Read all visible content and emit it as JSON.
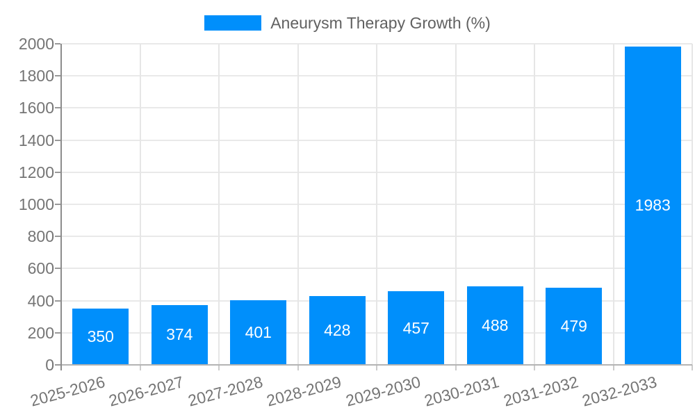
{
  "legend": {
    "label": "Aneurysm Therapy Growth (%)"
  },
  "colors": {
    "bar": "#008FFB",
    "bar_label": "#ffffff",
    "grid": "#e9e9e9",
    "y_axis_line": "#8c8c8c",
    "x_axis_line": "#b3b3b3",
    "axis_text": "#757575",
    "legend_text": "#616161"
  },
  "chart_data": {
    "type": "bar",
    "title": "Aneurysm Therapy Growth (%)",
    "categories": [
      "2025-2026",
      "2026-2027",
      "2027-2028",
      "2028-2029",
      "2029-2030",
      "2030-2031",
      "2031-2032",
      "2032-2033"
    ],
    "values": [
      350,
      374,
      401,
      428,
      457,
      488,
      479,
      1983
    ],
    "bar_value_labels": [
      350,
      374,
      401,
      428,
      457,
      488,
      479,
      1983
    ],
    "xlabel": "",
    "ylabel": "",
    "ylim": [
      0,
      2000
    ],
    "yticks": [
      0,
      200,
      400,
      600,
      800,
      1000,
      1200,
      1400,
      1600,
      1800,
      2000
    ],
    "grid": true,
    "legend_position": "top",
    "x_label_rotation_deg": -15
  }
}
